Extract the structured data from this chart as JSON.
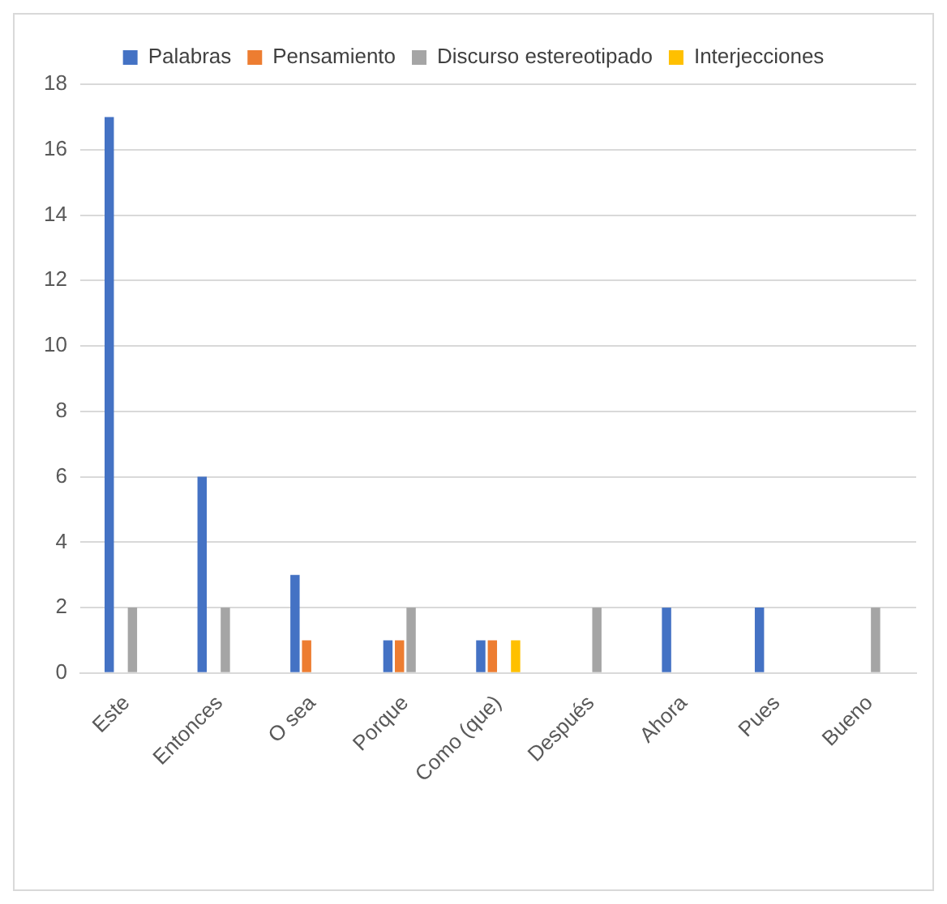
{
  "chart_data": {
    "type": "bar",
    "categories": [
      "Este",
      "Entonces",
      "O sea",
      "Porque",
      "Como (que)",
      "Después",
      "Ahora",
      "Pues",
      "Bueno"
    ],
    "series": [
      {
        "name": "Palabras",
        "color": "#4472c4",
        "values": [
          17,
          6,
          3,
          1,
          1,
          0,
          2,
          2,
          0
        ]
      },
      {
        "name": "Pensamiento",
        "color": "#ed7d31",
        "values": [
          0,
          0,
          1,
          1,
          1,
          0,
          0,
          0,
          0
        ]
      },
      {
        "name": "Discurso estereotipado",
        "color": "#a5a5a5",
        "values": [
          2,
          2,
          0,
          2,
          0,
          2,
          0,
          0,
          2
        ]
      },
      {
        "name": "Interjecciones",
        "color": "#ffc000",
        "values": [
          0,
          0,
          0,
          0,
          1,
          0,
          0,
          0,
          0
        ]
      }
    ],
    "ylim": [
      0,
      18
    ],
    "yticks": [
      0,
      2,
      4,
      6,
      8,
      10,
      12,
      14,
      16,
      18
    ],
    "grid": "y",
    "legend": "top"
  }
}
